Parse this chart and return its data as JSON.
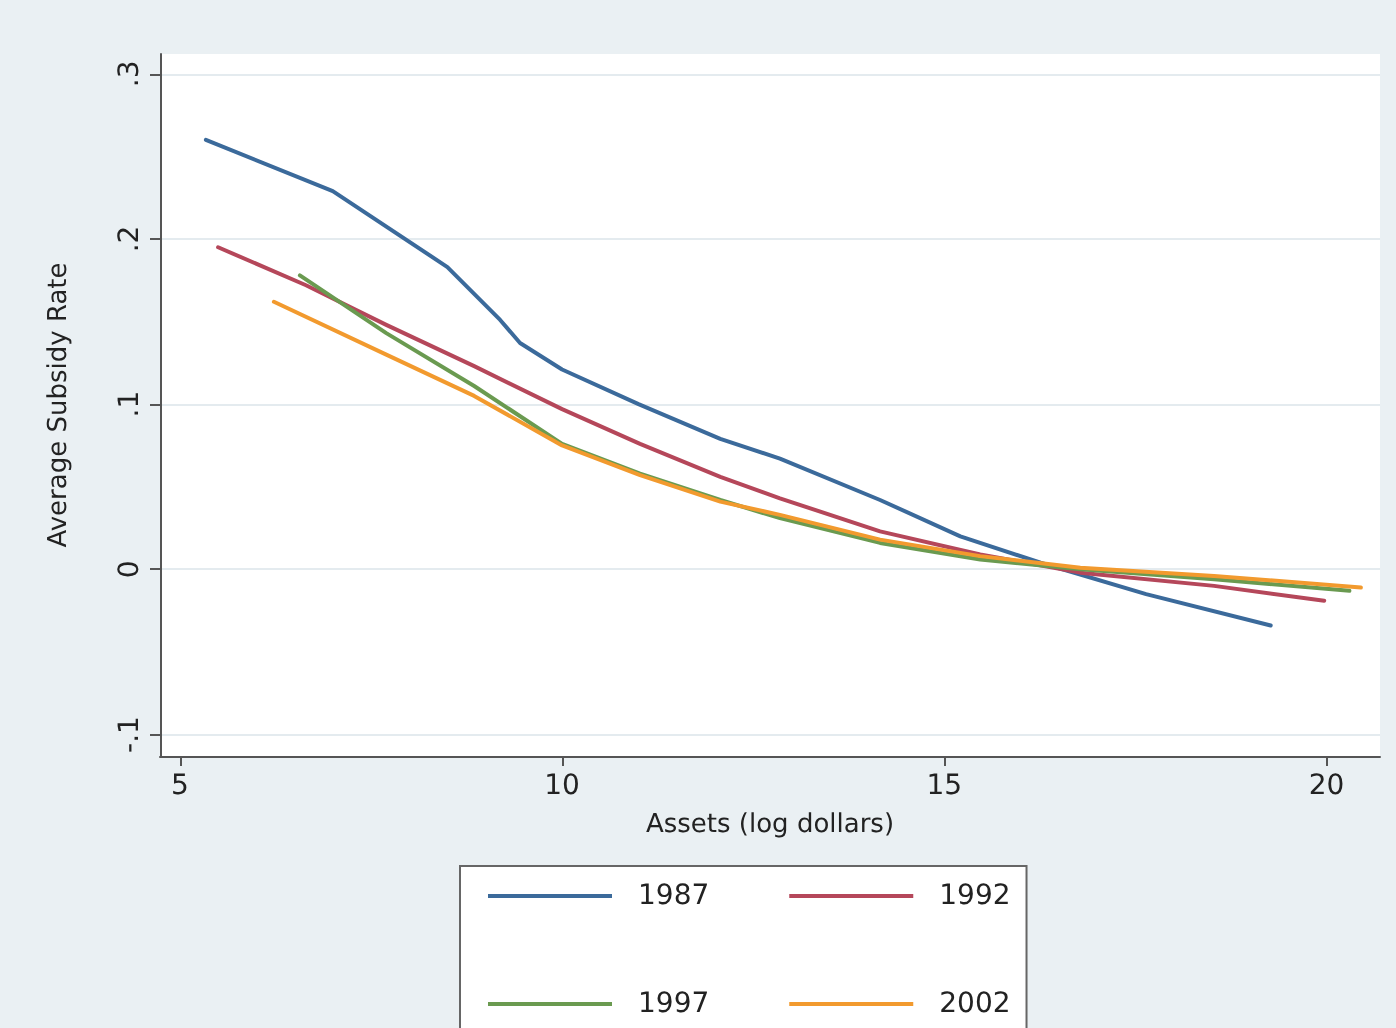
{
  "chart_data": {
    "type": "line",
    "xlabel": "Assets (log dollars)",
    "ylabel": "Average Subsidy Rate",
    "xlim": [
      4.74,
      20.7
    ],
    "ylim": [
      -0.113,
      0.312
    ],
    "xticks": [
      5,
      10,
      15,
      20
    ],
    "yticks": [
      {
        "value": -0.1,
        "label": "-.1"
      },
      {
        "value": 0,
        "label": "0"
      },
      {
        "value": 0.1,
        "label": ".1"
      },
      {
        "value": 0.2,
        "label": ".2"
      },
      {
        "value": 0.3,
        "label": ".3"
      }
    ],
    "grid": "y",
    "legend": "bottom",
    "line_style": "solid",
    "marker": "none",
    "series": [
      {
        "name": "1987",
        "color": "#3b6a9b",
        "x": [
          5.34,
          7.0,
          8.5,
          9.19,
          9.45,
          10.0,
          11.0,
          12.07,
          12.85,
          14.16,
          15.21,
          16.26,
          17.64,
          19.27
        ],
        "values": [
          0.26,
          0.229,
          0.183,
          0.151,
          0.137,
          0.121,
          0.1,
          0.079,
          0.067,
          0.042,
          0.02,
          0.004,
          -0.015,
          -0.034
        ]
      },
      {
        "name": "1992",
        "color": "#b5475a",
        "x": [
          5.5,
          6.65,
          7.7,
          8.85,
          10.0,
          11.02,
          12.07,
          12.85,
          14.16,
          15.47,
          16.78,
          18.53,
          19.97
        ],
        "values": [
          0.195,
          0.172,
          0.148,
          0.123,
          0.097,
          0.076,
          0.056,
          0.043,
          0.023,
          0.009,
          -0.002,
          -0.01,
          -0.019
        ]
      },
      {
        "name": "1997",
        "color": "#6a9a50",
        "x": [
          6.57,
          7.7,
          8.85,
          10.0,
          11.02,
          12.07,
          12.85,
          14.16,
          15.47,
          16.78,
          18.53,
          20.3
        ],
        "values": [
          0.178,
          0.143,
          0.111,
          0.076,
          0.058,
          0.042,
          0.031,
          0.016,
          0.006,
          0.0,
          -0.006,
          -0.013
        ]
      },
      {
        "name": "2002",
        "color": "#f29a2e",
        "x": [
          6.23,
          7.7,
          8.85,
          10.0,
          11.02,
          12.07,
          12.85,
          14.16,
          15.47,
          16.78,
          18.53,
          20.45
        ],
        "values": [
          0.162,
          0.13,
          0.105,
          0.075,
          0.057,
          0.041,
          0.033,
          0.018,
          0.008,
          0.001,
          -0.004,
          -0.011
        ]
      }
    ]
  }
}
